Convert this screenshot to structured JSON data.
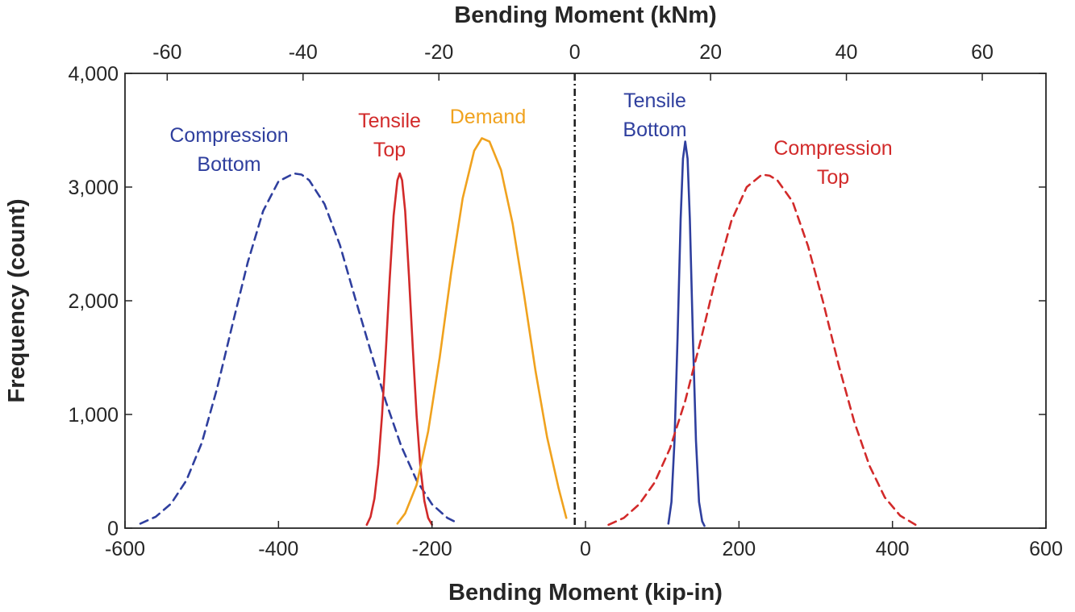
{
  "chart_data": {
    "type": "line",
    "title": "",
    "xlabel": "Bending Moment (kip-in)",
    "xlabel_top": "Bending Moment (kNm)",
    "ylabel": "Frequency (count)",
    "xlim": [
      -600,
      600
    ],
    "ylim": [
      0,
      4000
    ],
    "x_ticks": [
      -600,
      -400,
      -200,
      0,
      200,
      400,
      600
    ],
    "x_tick_labels": [
      "-600",
      "-400",
      "-200",
      "0",
      "200",
      "400",
      "600"
    ],
    "x_top_ticks": [
      -60,
      -40,
      -20,
      0,
      20,
      40,
      60
    ],
    "x_top_tick_labels": [
      "-60",
      "-40",
      "-20",
      "0",
      "20",
      "40",
      "60"
    ],
    "y_ticks": [
      0,
      1000,
      2000,
      3000,
      4000
    ],
    "y_tick_labels": [
      "0",
      "1,000",
      "2,000",
      "3,000",
      "4,000"
    ],
    "grid": false,
    "vertical_reference_x": -14,
    "series": [
      {
        "label": [
          "Compression",
          "Bottom"
        ],
        "color": "#2f3f9e",
        "style": "dashed",
        "x": [
          -580,
          -560,
          -540,
          -520,
          -500,
          -480,
          -460,
          -440,
          -420,
          -400,
          -380,
          -370,
          -360,
          -340,
          -320,
          -300,
          -280,
          -260,
          -240,
          -220,
          -200,
          -180,
          -165
        ],
        "y": [
          40,
          100,
          215,
          420,
          750,
          1230,
          1790,
          2340,
          2790,
          3050,
          3120,
          3110,
          3060,
          2850,
          2490,
          2020,
          1560,
          1110,
          720,
          420,
          210,
          90,
          40
        ]
      },
      {
        "label": [
          "Tensile",
          "Top"
        ],
        "color": "#d22a2a",
        "style": "solid",
        "x": [
          -285,
          -280,
          -275,
          -270,
          -265,
          -260,
          -255,
          -250,
          -245,
          -242,
          -239,
          -235,
          -230,
          -225,
          -220,
          -215,
          -210,
          -205,
          -200
        ],
        "y": [
          30,
          100,
          260,
          560,
          1000,
          1580,
          2200,
          2750,
          3060,
          3120,
          3060,
          2790,
          2220,
          1580,
          990,
          530,
          240,
          90,
          30
        ]
      },
      {
        "label": [
          "Demand"
        ],
        "color": "#f0a21e",
        "style": "solid",
        "x": [
          -245,
          -235,
          -220,
          -205,
          -190,
          -175,
          -160,
          -145,
          -135,
          -125,
          -110,
          -95,
          -80,
          -65,
          -50,
          -35,
          -25
        ],
        "y": [
          40,
          130,
          380,
          850,
          1500,
          2250,
          2900,
          3320,
          3430,
          3400,
          3150,
          2680,
          2050,
          1380,
          800,
          350,
          90
        ]
      },
      {
        "label": [
          "Tensile",
          "Bottom"
        ],
        "color": "#2f3f9e",
        "style": "solid",
        "x": [
          108,
          112,
          116,
          120,
          124,
          127,
          130,
          133,
          136,
          140,
          144,
          148,
          152,
          155
        ],
        "y": [
          40,
          230,
          770,
          1680,
          2720,
          3250,
          3400,
          3250,
          2720,
          1680,
          770,
          230,
          60,
          20
        ]
      },
      {
        "label": [
          "Compression",
          "Top"
        ],
        "color": "#d22a2a",
        "style": "dashed",
        "x": [
          30,
          50,
          70,
          90,
          110,
          130,
          150,
          170,
          190,
          210,
          230,
          240,
          250,
          270,
          290,
          310,
          330,
          350,
          370,
          390,
          410,
          430
        ],
        "y": [
          30,
          90,
          210,
          400,
          700,
          1120,
          1650,
          2210,
          2700,
          3000,
          3110,
          3100,
          3060,
          2870,
          2480,
          1980,
          1430,
          940,
          550,
          270,
          110,
          30
        ]
      }
    ]
  }
}
